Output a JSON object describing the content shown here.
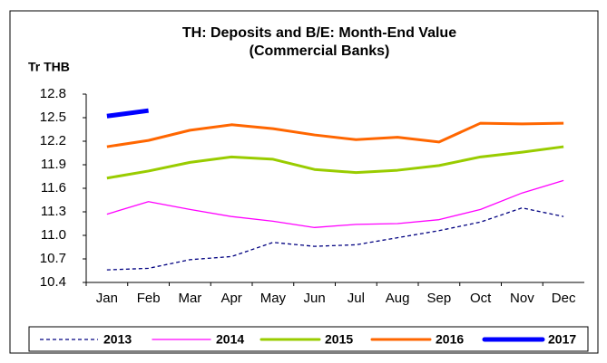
{
  "chart_data": {
    "type": "line",
    "title": "TH: Deposits and B/E: Month-End Value",
    "subtitle": "(Commercial Banks)",
    "y_label": "Tr THB",
    "categories": [
      "Jan",
      "Feb",
      "Mar",
      "Apr",
      "May",
      "Jun",
      "Jul",
      "Aug",
      "Sep",
      "Oct",
      "Nov",
      "Dec"
    ],
    "ylim": [
      10.4,
      12.8
    ],
    "yticks": [
      10.4,
      10.7,
      {
        "value": 11,
        "label": "11.0"
      },
      11.3,
      11.6,
      11.9,
      12.2,
      12.5,
      12.8
    ],
    "legend": "bottom",
    "series": [
      {
        "name": "2013",
        "color": "#000080",
        "dash": true,
        "width": 1.3,
        "values": [
          10.56,
          10.58,
          10.69,
          10.73,
          10.91,
          10.86,
          10.88,
          10.97,
          11.06,
          11.17,
          11.35,
          11.24
        ]
      },
      {
        "name": "2014",
        "color": "#ff00ff",
        "dash": false,
        "width": 1.3,
        "values": [
          11.27,
          11.43,
          11.33,
          11.24,
          11.18,
          11.1,
          11.14,
          11.15,
          11.2,
          11.33,
          11.54,
          11.7
        ]
      },
      {
        "name": "2015",
        "color": "#99cc00",
        "dash": false,
        "width": 3,
        "values": [
          11.73,
          11.82,
          11.93,
          12.0,
          11.97,
          11.84,
          11.8,
          11.83,
          11.89,
          12.0,
          12.06,
          12.13
        ]
      },
      {
        "name": "2016",
        "color": "#ff6600",
        "dash": false,
        "width": 3,
        "values": [
          12.13,
          12.21,
          12.34,
          12.41,
          12.36,
          12.28,
          12.22,
          12.25,
          12.19,
          12.43,
          12.42,
          12.43
        ]
      },
      {
        "name": "2017",
        "color": "#0000ff",
        "dash": false,
        "width": 5,
        "values": [
          12.52,
          12.59,
          null,
          null,
          null,
          null,
          null,
          null,
          null,
          null,
          null,
          null
        ]
      }
    ]
  }
}
